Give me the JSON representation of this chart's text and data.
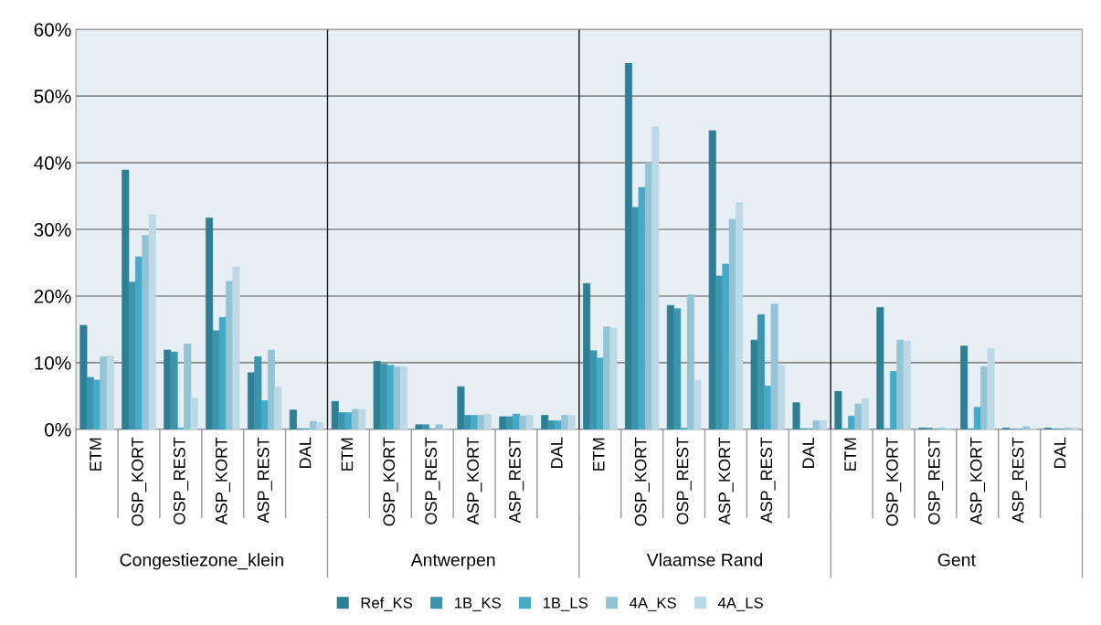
{
  "chart_data": {
    "type": "bar",
    "categories": [
      "ETM",
      "OSP_KORT",
      "OSP_REST",
      "ASP_KORT",
      "ASP_REST",
      "DAL",
      "ETM",
      "OSP_KORT",
      "OSP_REST",
      "ASP_KORT",
      "ASP_REST",
      "DAL",
      "ETM",
      "OSP_KORT",
      "OSP_REST",
      "ASP_KORT",
      "ASP_REST",
      "DAL",
      "ETM",
      "OSP_KORT",
      "OSP_REST",
      "ASP_KORT",
      "ASP_REST",
      "DAL"
    ],
    "annotations": [
      "Congestiezone_klein",
      "Antwerpen",
      "Vlaamse Rand",
      "Gent"
    ],
    "series": [
      {
        "name": "Ref_KS",
        "color": "#2e7f93",
        "values": [
          15.6,
          38.9,
          11.9,
          31.7,
          8.5,
          2.9,
          4.2,
          10.2,
          0.7,
          6.4,
          1.9,
          2.1,
          21.9,
          54.9,
          18.6,
          44.8,
          13.4,
          4.0,
          5.7,
          18.3,
          0.2,
          12.5,
          0.2,
          0.2
        ]
      },
      {
        "name": "1B_KS",
        "color": "#3a95ad",
        "values": [
          7.8,
          22.1,
          11.6,
          14.8,
          10.9,
          0.1,
          2.5,
          9.8,
          0.7,
          2.1,
          1.9,
          1.3,
          11.8,
          33.3,
          18.1,
          23.0,
          17.2,
          0.1,
          0.1,
          0.1,
          0.2,
          0.1,
          0,
          0
        ]
      },
      {
        "name": "1B_LS",
        "color": "#45aac6",
        "values": [
          7.4,
          25.9,
          0.2,
          16.8,
          4.3,
          0.1,
          2.5,
          9.6,
          0,
          2.1,
          2.3,
          1.3,
          10.7,
          36.3,
          0.2,
          24.8,
          6.5,
          0.1,
          2.0,
          8.7,
          0,
          3.3,
          0,
          0
        ]
      },
      {
        "name": "4A_KS",
        "color": "#93c4d6",
        "values": [
          10.9,
          29.1,
          12.8,
          22.2,
          11.9,
          1.2,
          3.0,
          9.4,
          0.7,
          2.1,
          2.0,
          2.1,
          15.4,
          40.0,
          20.2,
          31.5,
          18.8,
          1.3,
          3.8,
          13.4,
          0.2,
          9.4,
          0.4,
          0.2
        ]
      },
      {
        "name": "4A_LS",
        "color": "#bcd9e5",
        "values": [
          11.0,
          32.2,
          4.7,
          24.4,
          6.3,
          1.0,
          3.0,
          9.4,
          0,
          2.3,
          2.1,
          2.1,
          15.2,
          45.4,
          7.4,
          34.0,
          9.6,
          1.3,
          4.6,
          13.2,
          0,
          12.1,
          0,
          0.2
        ]
      }
    ],
    "ylim": [
      0,
      60
    ],
    "yticks": [
      {
        "value": 0,
        "label": "0%"
      },
      {
        "value": 10,
        "label": "10%"
      },
      {
        "value": 20,
        "label": "20%"
      },
      {
        "value": 30,
        "label": "30%"
      },
      {
        "value": 40,
        "label": "40%"
      },
      {
        "value": 50,
        "label": "50%"
      },
      {
        "value": 60,
        "label": "60%"
      }
    ],
    "grid": "y",
    "legend": "bottom"
  }
}
